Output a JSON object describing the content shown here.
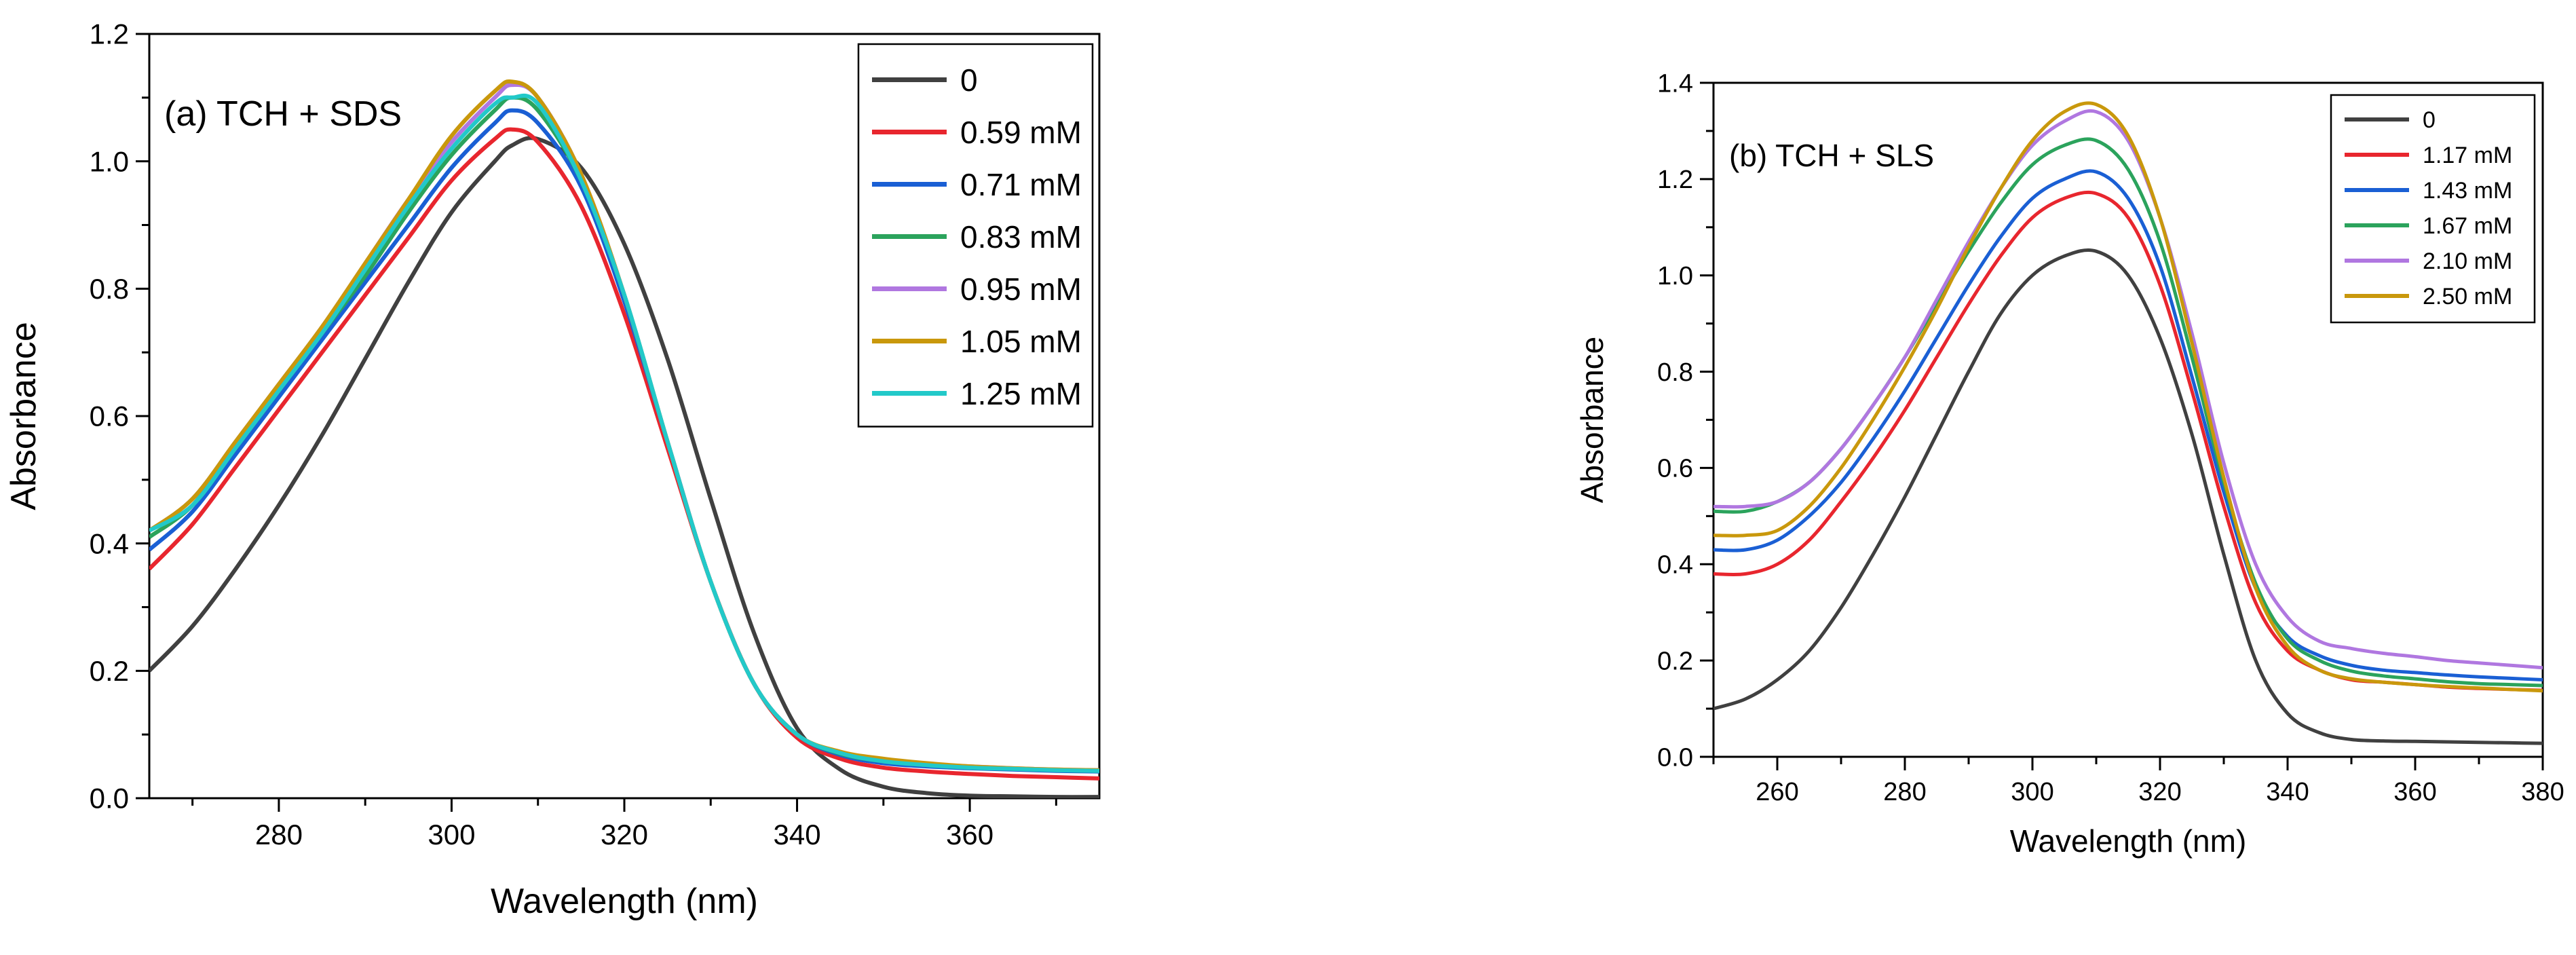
{
  "chart_data": [
    {
      "type": "line",
      "panel": "a",
      "title": "(a) TCH + SDS",
      "xlabel": "Wavelength (nm)",
      "ylabel": "Absorbance",
      "xlim": [
        265,
        375
      ],
      "ylim": [
        0.0,
        1.2
      ],
      "xticks": [
        280,
        300,
        320,
        340,
        360
      ],
      "yticks": [
        0.0,
        0.2,
        0.4,
        0.6,
        0.8,
        1.0,
        1.2
      ],
      "xtick_labels": [
        "280",
        "300",
        "320",
        "340",
        "360"
      ],
      "ytick_labels": [
        "0.0",
        "0.2",
        "0.4",
        "0.6",
        "0.8",
        "1.0",
        "1.2"
      ],
      "legend_position": "top-right",
      "x": [
        265,
        270,
        275,
        280,
        285,
        290,
        295,
        300,
        305,
        307,
        310,
        315,
        320,
        325,
        330,
        335,
        340,
        345,
        350,
        355,
        360,
        365,
        370,
        375
      ],
      "series": [
        {
          "name": "0",
          "color": "#404040",
          "values": [
            0.2,
            0.27,
            0.36,
            0.46,
            0.57,
            0.69,
            0.81,
            0.92,
            1.0,
            1.025,
            1.035,
            0.99,
            0.87,
            0.69,
            0.47,
            0.26,
            0.11,
            0.045,
            0.018,
            0.008,
            0.004,
            0.003,
            0.002,
            0.002
          ]
        },
        {
          "name": "0.59 mM",
          "color": "#e8262e",
          "values": [
            0.36,
            0.43,
            0.52,
            0.61,
            0.7,
            0.79,
            0.88,
            0.97,
            1.035,
            1.05,
            1.03,
            0.93,
            0.76,
            0.55,
            0.34,
            0.18,
            0.095,
            0.062,
            0.048,
            0.042,
            0.038,
            0.035,
            0.033,
            0.031
          ]
        },
        {
          "name": "0.71 mM",
          "color": "#1a5fd4",
          "values": [
            0.39,
            0.45,
            0.54,
            0.63,
            0.72,
            0.81,
            0.9,
            0.99,
            1.06,
            1.08,
            1.06,
            0.96,
            0.78,
            0.56,
            0.34,
            0.18,
            0.1,
            0.068,
            0.055,
            0.05,
            0.047,
            0.045,
            0.043,
            0.042
          ]
        },
        {
          "name": "0.83 mM",
          "color": "#2ba35c",
          "values": [
            0.41,
            0.46,
            0.55,
            0.64,
            0.73,
            0.82,
            0.92,
            1.01,
            1.08,
            1.1,
            1.08,
            0.97,
            0.79,
            0.56,
            0.34,
            0.18,
            0.1,
            0.07,
            0.058,
            0.052,
            0.048,
            0.046,
            0.044,
            0.043
          ]
        },
        {
          "name": "0.95 mM",
          "color": "#b077e0",
          "values": [
            0.42,
            0.47,
            0.56,
            0.65,
            0.74,
            0.84,
            0.94,
            1.03,
            1.1,
            1.12,
            1.1,
            0.98,
            0.79,
            0.56,
            0.34,
            0.18,
            0.1,
            0.072,
            0.06,
            0.054,
            0.05,
            0.047,
            0.045,
            0.044
          ]
        },
        {
          "name": "1.05 mM",
          "color": "#c9980c",
          "values": [
            0.42,
            0.47,
            0.56,
            0.65,
            0.74,
            0.84,
            0.94,
            1.04,
            1.11,
            1.125,
            1.1,
            0.98,
            0.79,
            0.56,
            0.34,
            0.18,
            0.1,
            0.073,
            0.062,
            0.055,
            0.05,
            0.047,
            0.045,
            0.044
          ]
        },
        {
          "name": "1.25 mM",
          "color": "#22c9c9",
          "values": [
            0.42,
            0.46,
            0.55,
            0.64,
            0.73,
            0.83,
            0.93,
            1.02,
            1.09,
            1.1,
            1.09,
            0.97,
            0.79,
            0.56,
            0.34,
            0.18,
            0.1,
            0.071,
            0.058,
            0.052,
            0.048,
            0.046,
            0.044,
            0.043
          ]
        }
      ]
    },
    {
      "type": "line",
      "panel": "b",
      "title": "(b) TCH + SLS",
      "xlabel": "Wavelength (nm)",
      "ylabel": "Absorbance",
      "xlim": [
        250,
        380
      ],
      "ylim": [
        0.0,
        1.4
      ],
      "xticks": [
        260,
        280,
        300,
        320,
        340,
        360,
        380
      ],
      "yticks": [
        0.0,
        0.2,
        0.4,
        0.6,
        0.8,
        1.0,
        1.2,
        1.4
      ],
      "xtick_labels": [
        "260",
        "280",
        "300",
        "320",
        "340",
        "360",
        "380"
      ],
      "ytick_labels": [
        "0.0",
        "0.2",
        "0.4",
        "0.6",
        "0.8",
        "1.0",
        "1.2",
        "1.4"
      ],
      "legend_position": "top-right",
      "x": [
        250,
        255,
        260,
        265,
        270,
        275,
        280,
        285,
        290,
        295,
        300,
        305,
        310,
        315,
        320,
        325,
        330,
        335,
        340,
        345,
        350,
        355,
        360,
        365,
        370,
        375,
        380
      ],
      "series": [
        {
          "name": "0",
          "color": "#404040",
          "values": [
            0.1,
            0.12,
            0.16,
            0.22,
            0.31,
            0.42,
            0.54,
            0.67,
            0.8,
            0.92,
            1.0,
            1.04,
            1.05,
            1.0,
            0.87,
            0.67,
            0.42,
            0.2,
            0.09,
            0.05,
            0.036,
            0.033,
            0.032,
            0.031,
            0.03,
            0.029,
            0.028
          ]
        },
        {
          "name": "1.17 mM",
          "color": "#e8262e",
          "values": [
            0.38,
            0.38,
            0.4,
            0.45,
            0.53,
            0.62,
            0.72,
            0.83,
            0.94,
            1.04,
            1.12,
            1.16,
            1.17,
            1.12,
            0.98,
            0.76,
            0.52,
            0.32,
            0.22,
            0.18,
            0.16,
            0.155,
            0.15,
            0.145,
            0.142,
            0.14,
            0.138
          ]
        },
        {
          "name": "1.43 mM",
          "color": "#1a5fd4",
          "values": [
            0.43,
            0.43,
            0.45,
            0.5,
            0.57,
            0.66,
            0.76,
            0.87,
            0.98,
            1.08,
            1.16,
            1.2,
            1.215,
            1.16,
            1.02,
            0.79,
            0.55,
            0.35,
            0.25,
            0.21,
            0.19,
            0.18,
            0.175,
            0.17,
            0.166,
            0.163,
            0.16
          ]
        },
        {
          "name": "1.67 mM",
          "color": "#2ba35c",
          "values": [
            0.51,
            0.51,
            0.53,
            0.57,
            0.64,
            0.73,
            0.83,
            0.94,
            1.05,
            1.15,
            1.23,
            1.27,
            1.28,
            1.22,
            1.07,
            0.83,
            0.57,
            0.36,
            0.245,
            0.2,
            0.178,
            0.168,
            0.162,
            0.156,
            0.152,
            0.15,
            0.148
          ]
        },
        {
          "name": "2.10 mM",
          "color": "#b077e0",
          "values": [
            0.52,
            0.52,
            0.53,
            0.57,
            0.64,
            0.73,
            0.83,
            0.95,
            1.07,
            1.18,
            1.27,
            1.32,
            1.34,
            1.28,
            1.12,
            0.88,
            0.61,
            0.4,
            0.29,
            0.24,
            0.225,
            0.215,
            0.208,
            0.2,
            0.195,
            0.19,
            0.185
          ]
        },
        {
          "name": "2.50 mM",
          "color": "#c9980c",
          "values": [
            0.46,
            0.46,
            0.47,
            0.52,
            0.6,
            0.7,
            0.81,
            0.93,
            1.06,
            1.18,
            1.28,
            1.34,
            1.355,
            1.29,
            1.12,
            0.86,
            0.58,
            0.35,
            0.23,
            0.18,
            0.162,
            0.155,
            0.15,
            0.146,
            0.143,
            0.14,
            0.137
          ]
        }
      ]
    }
  ]
}
